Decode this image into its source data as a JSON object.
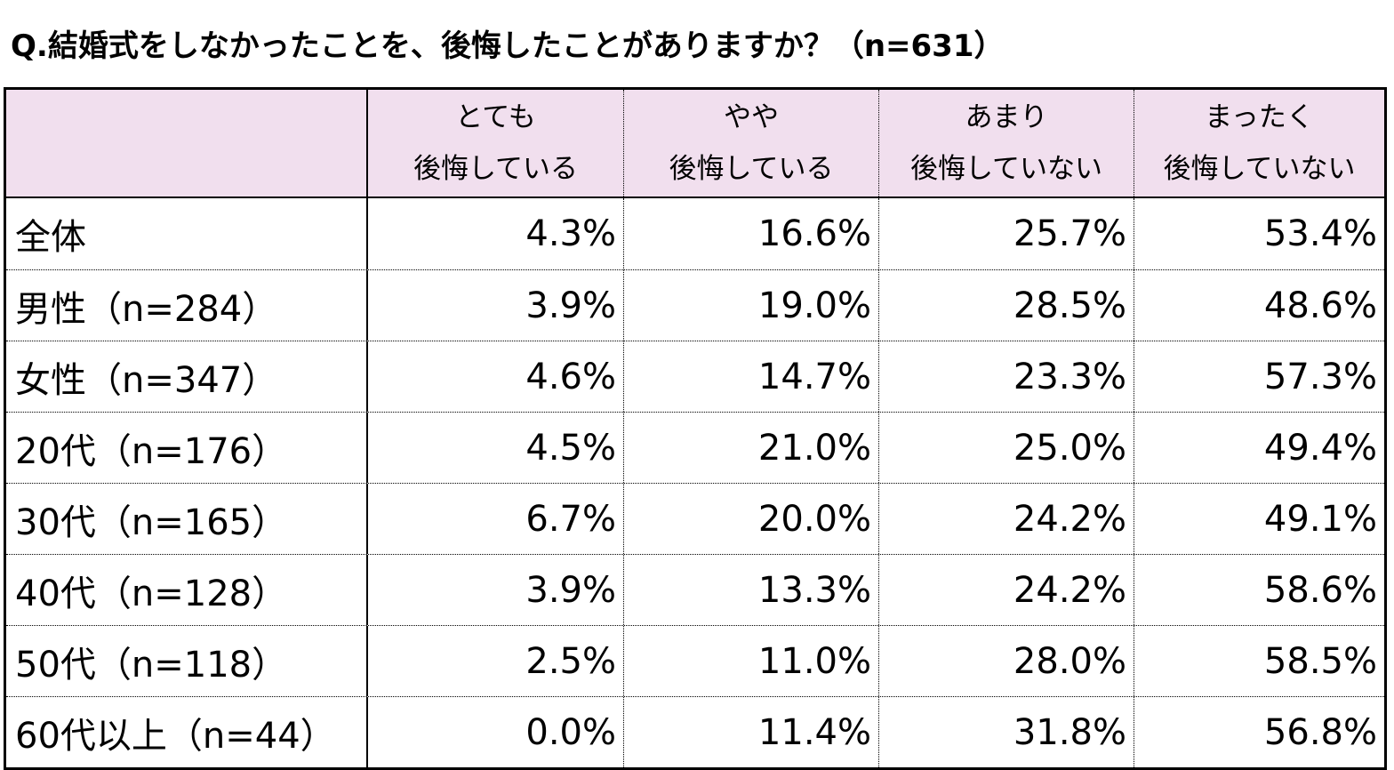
{
  "title": "Q.結婚式をしなかったことを、後悔したことがありますか？（n=631）",
  "header": {
    "corner": "",
    "columns": [
      {
        "line1": "とても",
        "line2": "後悔している"
      },
      {
        "line1": "やや",
        "line2": "後悔している"
      },
      {
        "line1": "あまり",
        "line2": "後悔していない"
      },
      {
        "line1": "まったく",
        "line2": "後悔していない"
      }
    ]
  },
  "rows": [
    {
      "label": "全体",
      "values": [
        "4.3%",
        "16.6%",
        "25.7%",
        "53.4%"
      ]
    },
    {
      "label": "男性（n=284）",
      "values": [
        "3.9%",
        "19.0%",
        "28.5%",
        "48.6%"
      ]
    },
    {
      "label": "女性（n=347）",
      "values": [
        "4.6%",
        "14.7%",
        "23.3%",
        "57.3%"
      ]
    },
    {
      "label": "20代（n=176）",
      "values": [
        "4.5%",
        "21.0%",
        "25.0%",
        "49.4%"
      ]
    },
    {
      "label": "30代（n=165）",
      "values": [
        "6.7%",
        "20.0%",
        "24.2%",
        "49.1%"
      ]
    },
    {
      "label": "40代（n=128）",
      "values": [
        "3.9%",
        "13.3%",
        "24.2%",
        "58.6%"
      ]
    },
    {
      "label": "50代（n=118）",
      "values": [
        "2.5%",
        "11.0%",
        "28.0%",
        "58.5%"
      ]
    },
    {
      "label": "60代以上（n=44）",
      "values": [
        "0.0%",
        "11.4%",
        "31.8%",
        "56.8%"
      ]
    }
  ],
  "colors": {
    "header_background": "#f1dfee",
    "border": "#000000"
  }
}
